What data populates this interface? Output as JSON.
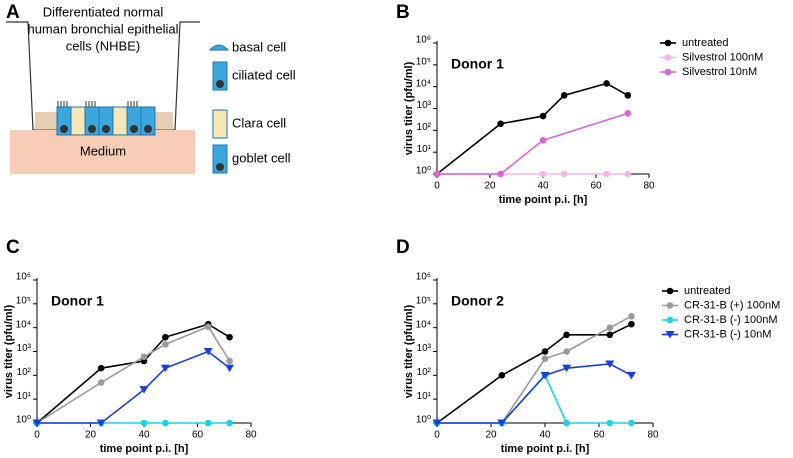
{
  "diagram": {
    "panel": "A",
    "title_lines": [
      "Differentiated normal",
      "human bronchial epithelial",
      "cells (NHBE)"
    ],
    "medium": "Medium",
    "legend": [
      "basal cell",
      "ciliated cell",
      "Clara cell",
      "goblet cell"
    ]
  },
  "chart_data": [
    {
      "type": "line",
      "panel": "B",
      "title": "Donor 1",
      "x_label": "time point p.i. [h]",
      "y_label": "virus titer (pfu/ml)",
      "xlim": [
        0,
        80
      ],
      "xticks": [
        0,
        20,
        40,
        60,
        80
      ],
      "ylim": [
        1,
        1000000
      ],
      "log_y": true,
      "yticks": [
        {
          "value": 1,
          "label": "10⁰"
        },
        {
          "value": 10,
          "label": "10¹"
        },
        {
          "value": 100,
          "label": "10²"
        },
        {
          "value": 1000,
          "label": "10³"
        },
        {
          "value": 10000,
          "label": "10⁴"
        },
        {
          "value": 100000,
          "label": "10⁵"
        },
        {
          "value": 1000000,
          "label": "10⁶"
        }
      ],
      "legend": "right",
      "series": [
        {
          "name": "untreated",
          "color": "#000000",
          "marker": "circle",
          "x": [
            0,
            24,
            40,
            48,
            64,
            72
          ],
          "values": [
            1,
            200,
            450,
            4000,
            14000,
            4000
          ]
        },
        {
          "name": "Silvestrol 100nM",
          "color": "#f4b8e4",
          "marker": "circle",
          "x": [
            0,
            24,
            40,
            48,
            64,
            72
          ],
          "values": [
            1,
            1,
            1,
            1,
            1,
            1
          ]
        },
        {
          "name": "Silvestrol 10nM",
          "color": "#d865d6",
          "marker": "circle",
          "x": [
            0,
            24,
            40,
            72
          ],
          "values": [
            1,
            1,
            35,
            600
          ]
        }
      ]
    },
    {
      "type": "line",
      "panel": "C",
      "title": "Donor 1",
      "x_label": "time point p.i. [h]",
      "y_label": "virus titer (pfu/ml)",
      "xlim": [
        0,
        80
      ],
      "xticks": [
        0,
        20,
        40,
        60,
        80
      ],
      "ylim": [
        1,
        1000000
      ],
      "log_y": true,
      "yticks": [
        {
          "value": 1,
          "label": "10⁰"
        },
        {
          "value": 10,
          "label": "10¹"
        },
        {
          "value": 100,
          "label": "10²"
        },
        {
          "value": 1000,
          "label": "10³"
        },
        {
          "value": 10000,
          "label": "10⁴"
        },
        {
          "value": 100000,
          "label": "10⁵"
        },
        {
          "value": 1000000,
          "label": "10⁶"
        }
      ],
      "series": [
        {
          "color": "#000000",
          "marker": "circle",
          "x": [
            0,
            24,
            40,
            48,
            64,
            72
          ],
          "values": [
            1,
            200,
            400,
            4000,
            14000,
            4000
          ]
        },
        {
          "color": "#9a9a9a",
          "marker": "circle",
          "x": [
            0,
            24,
            40,
            48,
            64,
            72
          ],
          "values": [
            1,
            50,
            600,
            2000,
            11000,
            400
          ]
        },
        {
          "color": "#1ed2e6",
          "marker": "circle",
          "x": [
            0,
            24,
            40,
            48,
            64,
            72
          ],
          "values": [
            1,
            1,
            1,
            1,
            1,
            1
          ]
        },
        {
          "color": "#1a3fd8",
          "marker": "triangle-down",
          "x": [
            0,
            24,
            40,
            48,
            64,
            72
          ],
          "values": [
            1,
            1,
            25,
            200,
            1000,
            200
          ]
        }
      ]
    },
    {
      "type": "line",
      "panel": "D",
      "title": "Donor 2",
      "x_label": "time point p.i. [h]",
      "y_label": "virus titer (pfu/ml)",
      "xlim": [
        0,
        80
      ],
      "xticks": [
        0,
        20,
        40,
        60,
        80
      ],
      "ylim": [
        1,
        1000000
      ],
      "log_y": true,
      "yticks": [
        {
          "value": 1,
          "label": "10⁰"
        },
        {
          "value": 10,
          "label": "10¹"
        },
        {
          "value": 100,
          "label": "10²"
        },
        {
          "value": 1000,
          "label": "10³"
        },
        {
          "value": 10000,
          "label": "10⁴"
        },
        {
          "value": 100000,
          "label": "10⁵"
        },
        {
          "value": 1000000,
          "label": "10⁶"
        }
      ],
      "legend": "right",
      "series": [
        {
          "name": "untreated",
          "color": "#000000",
          "marker": "circle",
          "x": [
            0,
            24,
            40,
            48,
            64,
            72
          ],
          "values": [
            1,
            100,
            1000,
            5000,
            5000,
            14000
          ]
        },
        {
          "name": "CR-31-B (+) 100nM",
          "color": "#9a9a9a",
          "marker": "circle",
          "x": [
            0,
            24,
            40,
            48,
            64,
            72
          ],
          "values": [
            1,
            1,
            500,
            1000,
            10000,
            30000
          ]
        },
        {
          "name": "CR-31-B (-) 100nM",
          "color": "#1ed2e6",
          "marker": "circle",
          "x": [
            0,
            24,
            40,
            48,
            64,
            72
          ],
          "values": [
            1,
            1,
            100,
            1,
            1,
            1
          ]
        },
        {
          "name": "CR-31-B (-) 10nM",
          "color": "#1a3fd8",
          "marker": "triangle-down",
          "x": [
            0,
            24,
            40,
            48,
            64,
            72
          ],
          "values": [
            1,
            1,
            100,
            200,
            300,
            100
          ]
        }
      ]
    }
  ]
}
